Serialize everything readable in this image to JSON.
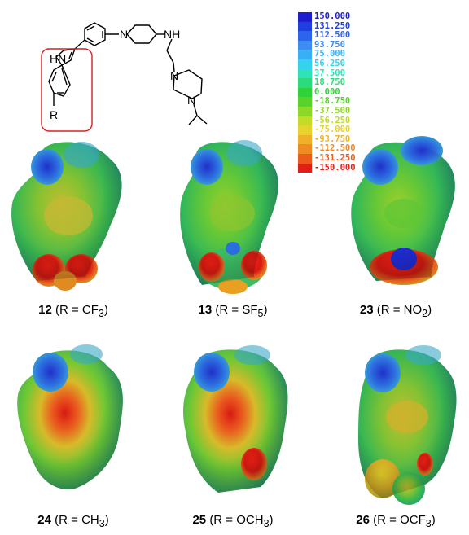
{
  "structure": {
    "atom_labels": {
      "indole_nh": "HN",
      "amine_nh": "NH",
      "n_piperidine": "N",
      "n_piperazine_top": "N",
      "n_piperazine_bottom": "N",
      "substituent": "R"
    }
  },
  "color_scale": {
    "entries": [
      {
        "label": "150.000",
        "color": "#1f1fd0"
      },
      {
        "label": "131.250",
        "color": "#1f3fe0"
      },
      {
        "label": "112.500",
        "color": "#2c64ee"
      },
      {
        "label": "93.750",
        "color": "#3c8cf4"
      },
      {
        "label": "75.000",
        "color": "#37b0f6"
      },
      {
        "label": "56.250",
        "color": "#34d2ee"
      },
      {
        "label": "37.500",
        "color": "#2fe2b8"
      },
      {
        "label": "18.750",
        "color": "#2cdc7c"
      },
      {
        "label": "0.000",
        "color": "#30d23c"
      },
      {
        "label": "-18.750",
        "color": "#5ad22c"
      },
      {
        "label": "-37.500",
        "color": "#8ed828"
      },
      {
        "label": "-56.250",
        "color": "#c2dc28"
      },
      {
        "label": "-75.000",
        "color": "#e8d22c"
      },
      {
        "label": "-93.750",
        "color": "#f0b02a"
      },
      {
        "label": "-112.500",
        "color": "#f08a22"
      },
      {
        "label": "-131.250",
        "color": "#ec5a1c"
      },
      {
        "label": "-150.000",
        "color": "#e41e16"
      }
    ]
  },
  "panels": [
    {
      "number": "12",
      "r_text": "(R = CF",
      "sub": "3",
      "close": ")"
    },
    {
      "number": "13",
      "r_text": "(R = SF",
      "sub": "5",
      "close": ")"
    },
    {
      "number": "23",
      "r_text": "(R = NO",
      "sub": "2",
      "close": ")"
    },
    {
      "number": "24",
      "r_text": "(R = CH",
      "sub": "3",
      "close": ")"
    },
    {
      "number": "25",
      "r_text": "(R = OCH",
      "sub": "3",
      "close": ")"
    },
    {
      "number": "26",
      "r_text": "(R = OCF",
      "sub": "3",
      "close": ")"
    }
  ]
}
